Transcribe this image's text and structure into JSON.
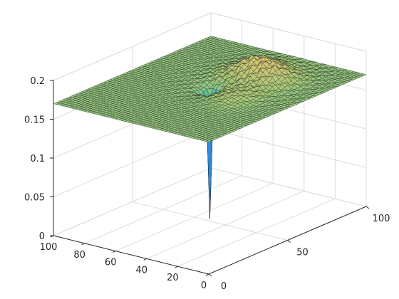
{
  "chart_data": {
    "type": "surface",
    "title": "",
    "xlabel": "",
    "ylabel": "",
    "zlabel": "",
    "xlim": [
      0,
      100
    ],
    "ylim": [
      0,
      100
    ],
    "zlim": [
      0,
      0.2
    ],
    "x_ticks": [
      "0",
      "20",
      "40",
      "60",
      "80",
      "100"
    ],
    "y_ticks": [
      "0",
      "50",
      "100"
    ],
    "z_ticks": [
      "0",
      "0.05",
      "0.1",
      "0.15",
      "0.2"
    ],
    "grid": true,
    "colormap": "parula-like",
    "mesh_edges": true,
    "surface_peaks": [
      {
        "x": 46,
        "y": 74,
        "z": 0.19
      },
      {
        "x": 30,
        "y": 72,
        "z": 0.185
      },
      {
        "x": 30,
        "y": 48,
        "z": 0.179
      }
    ],
    "surface_baseline_z": 0.17,
    "surface_min": {
      "x": 50,
      "y": 50,
      "z": 0.003
    },
    "colors": {
      "surface_low": "#3e26a8",
      "surface_mid": "#3bbcb0",
      "surface_high": "#e9c472",
      "edge": "#0c0c0c",
      "axis": "#262626",
      "grid": "#dcdcdc"
    }
  }
}
